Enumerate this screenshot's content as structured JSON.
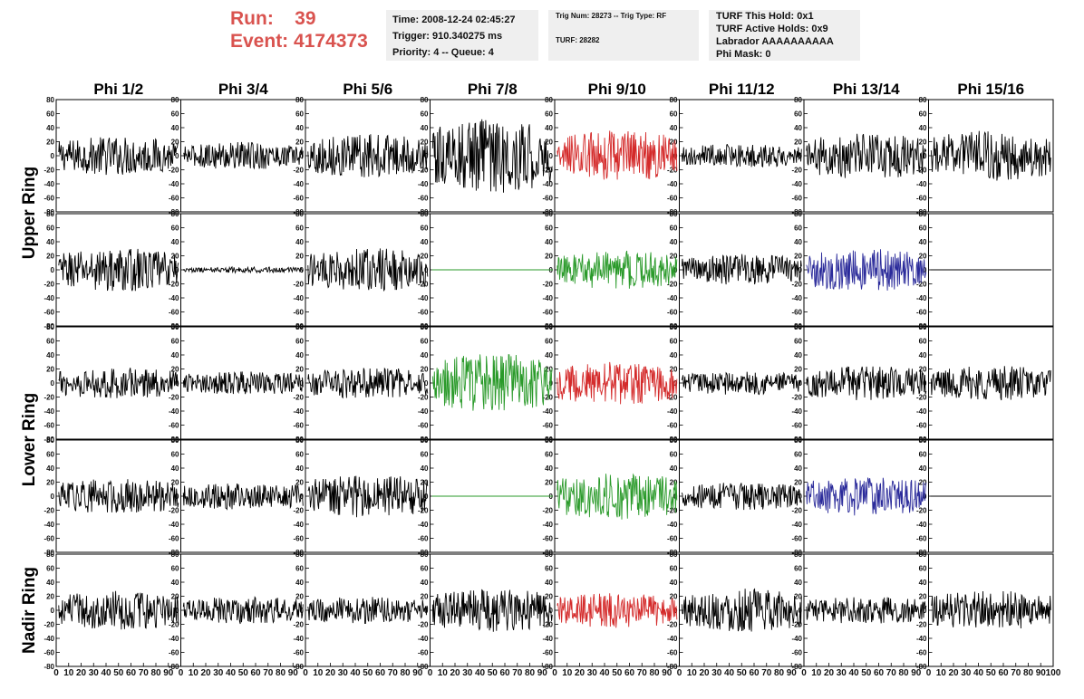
{
  "header": {
    "run_label": "Run:",
    "run_value": "39",
    "event_label": "Event:",
    "event_value": "4174373"
  },
  "info_box_1": {
    "time": "Time: 2008-12-24 02:45:27",
    "trigger": "Trigger: 910.340275 ms",
    "priority": "Priority: 4 -- Queue: 4"
  },
  "info_box_2": {
    "trig_num": "Trig Num: 28273 -- Trig Type: RF",
    "turf": "TURF: 28282"
  },
  "info_box_3": {
    "turf_hold": "TURF This Hold: 0x1",
    "turf_active": "TURF Active Holds: 0x9",
    "labrador": "Labrador AAAAAAAAAA",
    "phi_mask": "Phi Mask: 0"
  },
  "colors": {
    "header_red": "#d9534f",
    "trace_black": "#000000",
    "trace_red": "#d42a2a",
    "trace_green": "#2a9a2a",
    "trace_blue": "#2a2a9a",
    "info_bg": "#efefef"
  },
  "chart_data": {
    "type": "line",
    "columns": [
      "Phi 1/2",
      "Phi 3/4",
      "Phi 5/6",
      "Phi 7/8",
      "Phi 9/10",
      "Phi 11/12",
      "Phi 13/14",
      "Phi 15/16"
    ],
    "ring_labels": [
      {
        "label": "Upper Ring",
        "rows": [
          0,
          1
        ]
      },
      {
        "label": "Lower Ring",
        "rows": [
          2,
          3
        ]
      },
      {
        "label": "Nadir Ring",
        "rows": [
          4
        ]
      }
    ],
    "ylim": [
      -80,
      80
    ],
    "yticks": [
      -80,
      -60,
      -40,
      -20,
      0,
      20,
      40,
      60,
      80
    ],
    "xlim": [
      0,
      100
    ],
    "xtick_labels": [
      "0",
      "10",
      "20",
      "30",
      "40",
      "50",
      "60",
      "70",
      "80",
      "90",
      "100"
    ],
    "grid": false,
    "series": [
      {
        "row": 0,
        "col": 0,
        "color": "black",
        "amplitude": 20,
        "flat": false
      },
      {
        "row": 0,
        "col": 1,
        "color": "black",
        "amplitude": 14,
        "flat": false
      },
      {
        "row": 0,
        "col": 2,
        "color": "black",
        "amplitude": 22,
        "flat": false
      },
      {
        "row": 0,
        "col": 3,
        "color": "black",
        "amplitude": 38,
        "flat": false
      },
      {
        "row": 0,
        "col": 4,
        "color": "red",
        "amplitude": 26,
        "flat": false
      },
      {
        "row": 0,
        "col": 5,
        "color": "black",
        "amplitude": 12,
        "flat": false
      },
      {
        "row": 0,
        "col": 6,
        "color": "black",
        "amplitude": 24,
        "flat": false
      },
      {
        "row": 0,
        "col": 7,
        "color": "black",
        "amplitude": 26,
        "flat": false
      },
      {
        "row": 1,
        "col": 0,
        "color": "black",
        "amplitude": 22,
        "flat": false
      },
      {
        "row": 1,
        "col": 1,
        "color": "black",
        "amplitude": 3,
        "flat": false
      },
      {
        "row": 1,
        "col": 2,
        "color": "black",
        "amplitude": 22,
        "flat": false
      },
      {
        "row": 1,
        "col": 3,
        "color": "green",
        "amplitude": 0,
        "flat": true
      },
      {
        "row": 1,
        "col": 4,
        "color": "green",
        "amplitude": 20,
        "flat": false
      },
      {
        "row": 1,
        "col": 5,
        "color": "black",
        "amplitude": 16,
        "flat": false
      },
      {
        "row": 1,
        "col": 6,
        "color": "blue",
        "amplitude": 22,
        "flat": false
      },
      {
        "row": 1,
        "col": 7,
        "color": "black",
        "amplitude": 0,
        "flat": true
      },
      {
        "row": 2,
        "col": 0,
        "color": "black",
        "amplitude": 16,
        "flat": false
      },
      {
        "row": 2,
        "col": 1,
        "color": "black",
        "amplitude": 12,
        "flat": false
      },
      {
        "row": 2,
        "col": 2,
        "color": "black",
        "amplitude": 16,
        "flat": false
      },
      {
        "row": 2,
        "col": 3,
        "color": "green",
        "amplitude": 30,
        "flat": false
      },
      {
        "row": 2,
        "col": 4,
        "color": "red",
        "amplitude": 22,
        "flat": false
      },
      {
        "row": 2,
        "col": 5,
        "color": "black",
        "amplitude": 12,
        "flat": false
      },
      {
        "row": 2,
        "col": 6,
        "color": "black",
        "amplitude": 18,
        "flat": false
      },
      {
        "row": 2,
        "col": 7,
        "color": "black",
        "amplitude": 18,
        "flat": false
      },
      {
        "row": 3,
        "col": 0,
        "color": "black",
        "amplitude": 18,
        "flat": false
      },
      {
        "row": 3,
        "col": 1,
        "color": "black",
        "amplitude": 14,
        "flat": false
      },
      {
        "row": 3,
        "col": 2,
        "color": "black",
        "amplitude": 22,
        "flat": false
      },
      {
        "row": 3,
        "col": 3,
        "color": "green",
        "amplitude": 0,
        "flat": true
      },
      {
        "row": 3,
        "col": 4,
        "color": "green",
        "amplitude": 24,
        "flat": false
      },
      {
        "row": 3,
        "col": 5,
        "color": "black",
        "amplitude": 14,
        "flat": false
      },
      {
        "row": 3,
        "col": 6,
        "color": "blue",
        "amplitude": 20,
        "flat": false
      },
      {
        "row": 3,
        "col": 7,
        "color": "black",
        "amplitude": 0,
        "flat": true
      },
      {
        "row": 4,
        "col": 0,
        "color": "black",
        "amplitude": 20,
        "flat": false
      },
      {
        "row": 4,
        "col": 1,
        "color": "black",
        "amplitude": 14,
        "flat": false
      },
      {
        "row": 4,
        "col": 2,
        "color": "black",
        "amplitude": 14,
        "flat": false
      },
      {
        "row": 4,
        "col": 3,
        "color": "black",
        "amplitude": 22,
        "flat": false
      },
      {
        "row": 4,
        "col": 4,
        "color": "red",
        "amplitude": 18,
        "flat": false
      },
      {
        "row": 4,
        "col": 5,
        "color": "black",
        "amplitude": 22,
        "flat": false
      },
      {
        "row": 4,
        "col": 6,
        "color": "black",
        "amplitude": 14,
        "flat": false
      },
      {
        "row": 4,
        "col": 7,
        "color": "black",
        "amplitude": 20,
        "flat": false
      }
    ]
  }
}
